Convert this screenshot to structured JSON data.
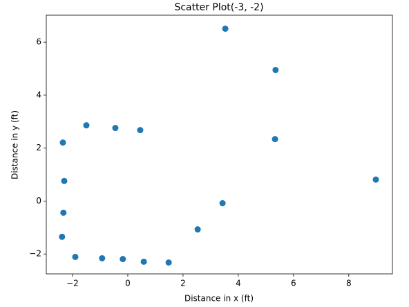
{
  "chart_data": {
    "type": "scatter",
    "title": "Scatter Plot(-3, -2)",
    "x_label": "Distance in x (ft)",
    "y_label": "Distance in y (ft)",
    "color": "#1f77b4",
    "x": [
      -1.5,
      -0.45,
      0.45,
      -2.35,
      -2.3,
      -2.33,
      -2.38,
      -1.9,
      -0.93,
      -0.18,
      0.58,
      1.48,
      2.53,
      3.43,
      3.53,
      5.35,
      5.33,
      8.98
    ],
    "y": [
      2.86,
      2.76,
      2.68,
      2.21,
      0.76,
      -0.44,
      -1.35,
      -2.11,
      -2.16,
      -2.19,
      -2.29,
      -2.32,
      -1.07,
      -0.08,
      6.51,
      4.95,
      2.34,
      0.81
    ],
    "xlim": [
      -2.95,
      9.58
    ],
    "ylim": [
      -2.75,
      7.02
    ],
    "xticks": [
      {
        "value": -2,
        "label": "−2"
      },
      0,
      2,
      4,
      6,
      8
    ],
    "yticks": [
      {
        "value": -2,
        "label": "−2"
      },
      0,
      2,
      4,
      6
    ]
  }
}
